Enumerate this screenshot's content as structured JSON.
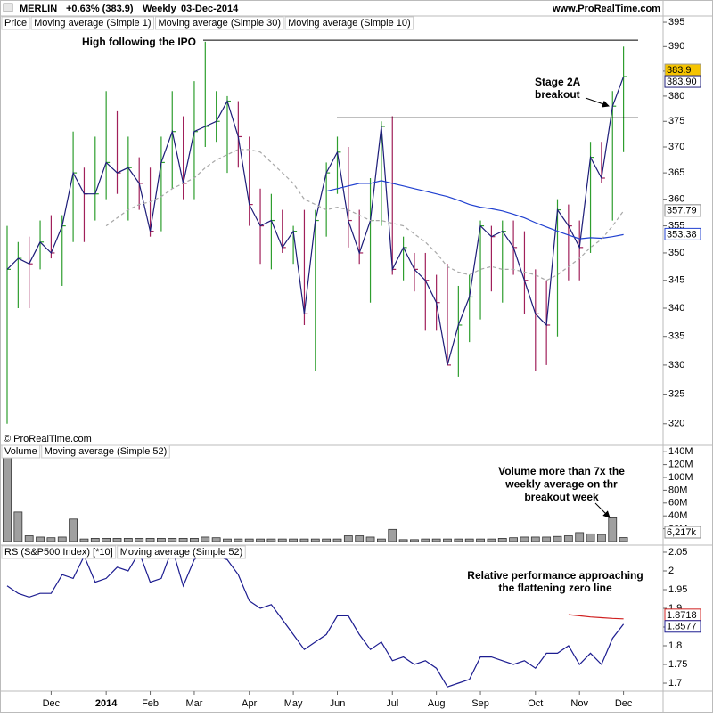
{
  "header": {
    "symbol": "MERLIN",
    "change": "+0.63% (383.9)",
    "period": "Weekly",
    "date": "03-Dec-2014",
    "site": "www.ProRealTime.com",
    "copyright": "© ProRealTime.com"
  },
  "chart_data": [
    {
      "type": "ohlc",
      "log_scale": true,
      "ylim": [
        316.4,
        396.3
      ],
      "yticks": [
        395,
        390,
        385,
        380,
        375,
        370,
        365,
        360,
        355,
        350,
        345,
        340,
        335,
        330,
        325,
        320
      ],
      "series": [
        {
          "name": "Price",
          "up_color": "#2e9e2e",
          "down_color": "#a0205a",
          "highs": [
            355,
            352,
            353,
            356,
            357,
            357,
            373,
            366,
            372,
            381,
            377,
            372,
            368,
            366,
            372,
            381,
            376,
            383,
            391,
            381,
            380,
            379,
            372,
            362,
            361,
            358,
            355,
            358,
            358,
            367,
            372,
            370,
            358,
            364,
            375,
            376,
            353,
            350,
            350,
            346,
            348,
            344,
            346,
            356,
            355,
            356,
            356,
            354,
            347,
            345,
            360,
            359,
            356,
            371,
            371,
            381,
            390
          ],
          "lows": [
            320,
            340,
            340,
            347,
            349,
            344,
            352,
            352,
            356,
            360,
            361,
            356,
            358,
            353,
            354,
            362,
            360,
            360,
            370,
            371,
            365,
            366,
            355,
            348,
            347,
            350,
            348,
            337,
            329,
            353,
            361,
            351,
            348,
            341,
            355,
            346,
            345,
            343,
            336,
            336,
            330,
            328,
            334,
            338,
            343,
            341,
            346,
            339,
            329,
            330,
            335,
            345,
            345,
            350,
            363,
            356,
            369
          ],
          "closes": [
            347,
            349,
            348,
            352,
            350,
            355,
            365,
            361,
            361,
            367,
            365,
            366,
            363,
            354,
            367,
            373,
            363,
            373,
            374,
            375,
            379,
            372,
            359,
            355,
            356,
            351,
            354,
            339,
            356,
            365,
            369,
            356,
            350,
            356,
            374,
            347,
            351,
            347,
            345,
            341,
            330,
            337,
            342,
            355,
            353,
            354,
            351,
            345,
            339,
            337,
            358,
            355,
            351,
            368,
            364,
            378,
            383.9
          ]
        },
        {
          "name": "Moving average (Simple 1)",
          "color": "#1c1c78",
          "value_label": "383.90",
          "values": [
            347,
            349,
            348,
            352,
            350,
            355,
            365,
            361,
            361,
            367,
            365,
            366,
            363,
            354,
            367,
            373,
            363,
            373,
            374,
            375,
            379,
            372,
            359,
            355,
            356,
            351,
            354,
            339,
            356,
            365,
            369,
            356,
            350,
            356,
            374,
            347,
            351,
            347,
            345,
            341,
            330,
            337,
            342,
            355,
            353,
            354,
            351,
            345,
            339,
            337,
            358,
            355,
            351,
            368,
            364,
            378,
            383.9
          ]
        },
        {
          "name": "Moving average (Simple 30)",
          "color": "#2040d0",
          "values": [
            null,
            null,
            null,
            null,
            null,
            null,
            null,
            null,
            null,
            null,
            null,
            null,
            null,
            null,
            null,
            null,
            null,
            null,
            null,
            null,
            null,
            null,
            null,
            null,
            null,
            null,
            null,
            null,
            null,
            361.5,
            362,
            362.5,
            363,
            363,
            363.5,
            363,
            362.5,
            362,
            361.5,
            361,
            360.5,
            359.8,
            359,
            358.5,
            358.2,
            357.8,
            357.2,
            356.5,
            355.6,
            354.8,
            354,
            353.3,
            352.6,
            352.8,
            352.7,
            353,
            353.38
          ]
        },
        {
          "name": "Moving average (Simple 10)",
          "color": "#a8a8a8",
          "dashed": true,
          "values": [
            null,
            null,
            null,
            null,
            null,
            null,
            null,
            null,
            null,
            355,
            356.5,
            358,
            359,
            359.5,
            360.5,
            362,
            363,
            364,
            366,
            367.5,
            368.5,
            369.5,
            369.5,
            369,
            367,
            365,
            363,
            360,
            359,
            358,
            358.5,
            358,
            357,
            356,
            356,
            355.5,
            355,
            353.5,
            352,
            350,
            347.5,
            346.5,
            346,
            347,
            347.5,
            347,
            347,
            346.5,
            346,
            345,
            346,
            347.5,
            349,
            351,
            352.5,
            355,
            357.79
          ]
        }
      ],
      "hlines": [
        {
          "value": 391.3
        },
        {
          "value": 375.7
        }
      ],
      "annotations": [
        {
          "text": [
            "High following the IPO"
          ]
        },
        {
          "text": [
            "Stage 2A",
            "breakout"
          ]
        }
      ]
    },
    {
      "type": "bar",
      "ylim": [
        0,
        150000000
      ],
      "yticks": [
        {
          "value": 140000000,
          "label": "140M"
        },
        {
          "value": 120000000,
          "label": "120M"
        },
        {
          "value": 100000000,
          "label": "100M"
        },
        {
          "value": 80000000,
          "label": "80M"
        },
        {
          "value": 60000000,
          "label": "60M"
        },
        {
          "value": 40000000,
          "label": "40M"
        },
        {
          "value": 20000000,
          "label": "20M"
        }
      ],
      "series": [
        {
          "name": "Volume",
          "color": "#a0a0a0",
          "last_label": "6,217k",
          "values": [
            160000000,
            46000000,
            9000000,
            7000000,
            6000000,
            7000000,
            35000000,
            4000000,
            5000000,
            5000000,
            5000000,
            5000000,
            5000000,
            5000000,
            5000000,
            5000000,
            5000000,
            5000000,
            7000000,
            6000000,
            4000000,
            4000000,
            4000000,
            4000000,
            4000000,
            4000000,
            4000000,
            4000000,
            4000000,
            4000000,
            4000000,
            9000000,
            9000000,
            7000000,
            4000000,
            19000000,
            3000000,
            3000000,
            4000000,
            4000000,
            4000000,
            4000000,
            4000000,
            4000000,
            4000000,
            5000000,
            6000000,
            7000000,
            7000000,
            7000000,
            8000000,
            9000000,
            14000000,
            12000000,
            11000000,
            37000000,
            6217000
          ]
        },
        {
          "name": "Moving average (Simple 52)",
          "color": "#d04040"
        }
      ],
      "annotations": [
        {
          "text": [
            "Volume more than 7x the",
            "weekly average on thr",
            "breakout week"
          ]
        }
      ]
    },
    {
      "type": "line",
      "ylim": [
        1.681,
        2.069
      ],
      "yticks": [
        2.05,
        2,
        1.95,
        1.9,
        1.85,
        1.8,
        1.75,
        1.7
      ],
      "categories": [
        null,
        null,
        null,
        null,
        "Dec",
        null,
        null,
        null,
        null,
        "2014",
        null,
        null,
        null,
        "Feb",
        null,
        null,
        null,
        "Mar",
        null,
        null,
        null,
        null,
        "Apr",
        null,
        null,
        null,
        "May",
        null,
        null,
        null,
        "Jun",
        null,
        null,
        null,
        null,
        "Jul",
        null,
        null,
        null,
        "Aug",
        null,
        null,
        null,
        "Sep",
        null,
        null,
        null,
        null,
        "Oct",
        null,
        null,
        null,
        "Nov",
        null,
        null,
        null,
        "Dec"
      ],
      "series": [
        {
          "name": "RS (S&P500 Index) [*10]",
          "color": "#1c1c90",
          "values": [
            1.96,
            1.94,
            1.93,
            1.94,
            1.94,
            1.99,
            1.98,
            2.04,
            1.97,
            1.98,
            2.01,
            2.0,
            2.05,
            1.97,
            1.98,
            2.06,
            1.96,
            2.03,
            2.05,
            2.04,
            2.03,
            1.99,
            1.92,
            1.9,
            1.91,
            1.87,
            1.83,
            1.79,
            1.81,
            1.83,
            1.88,
            1.88,
            1.83,
            1.79,
            1.81,
            1.76,
            1.77,
            1.75,
            1.76,
            1.74,
            1.69,
            1.7,
            1.71,
            1.77,
            1.77,
            1.76,
            1.75,
            1.76,
            1.74,
            1.78,
            1.78,
            1.8,
            1.75,
            1.78,
            1.75,
            1.82,
            1.8577
          ]
        },
        {
          "name": "Moving average (Simple 52)",
          "color": "#d02020",
          "values": [
            null,
            null,
            null,
            null,
            null,
            null,
            null,
            null,
            null,
            null,
            null,
            null,
            null,
            null,
            null,
            null,
            null,
            null,
            null,
            null,
            null,
            null,
            null,
            null,
            null,
            null,
            null,
            null,
            null,
            null,
            null,
            null,
            null,
            null,
            null,
            null,
            null,
            null,
            null,
            null,
            null,
            null,
            null,
            null,
            null,
            null,
            null,
            null,
            null,
            null,
            null,
            1.883,
            1.88,
            1.877,
            1.875,
            1.873,
            1.8718
          ]
        }
      ],
      "annotations": [
        {
          "text": [
            "Relative performance approaching",
            "the flattening zero line"
          ]
        }
      ]
    }
  ]
}
